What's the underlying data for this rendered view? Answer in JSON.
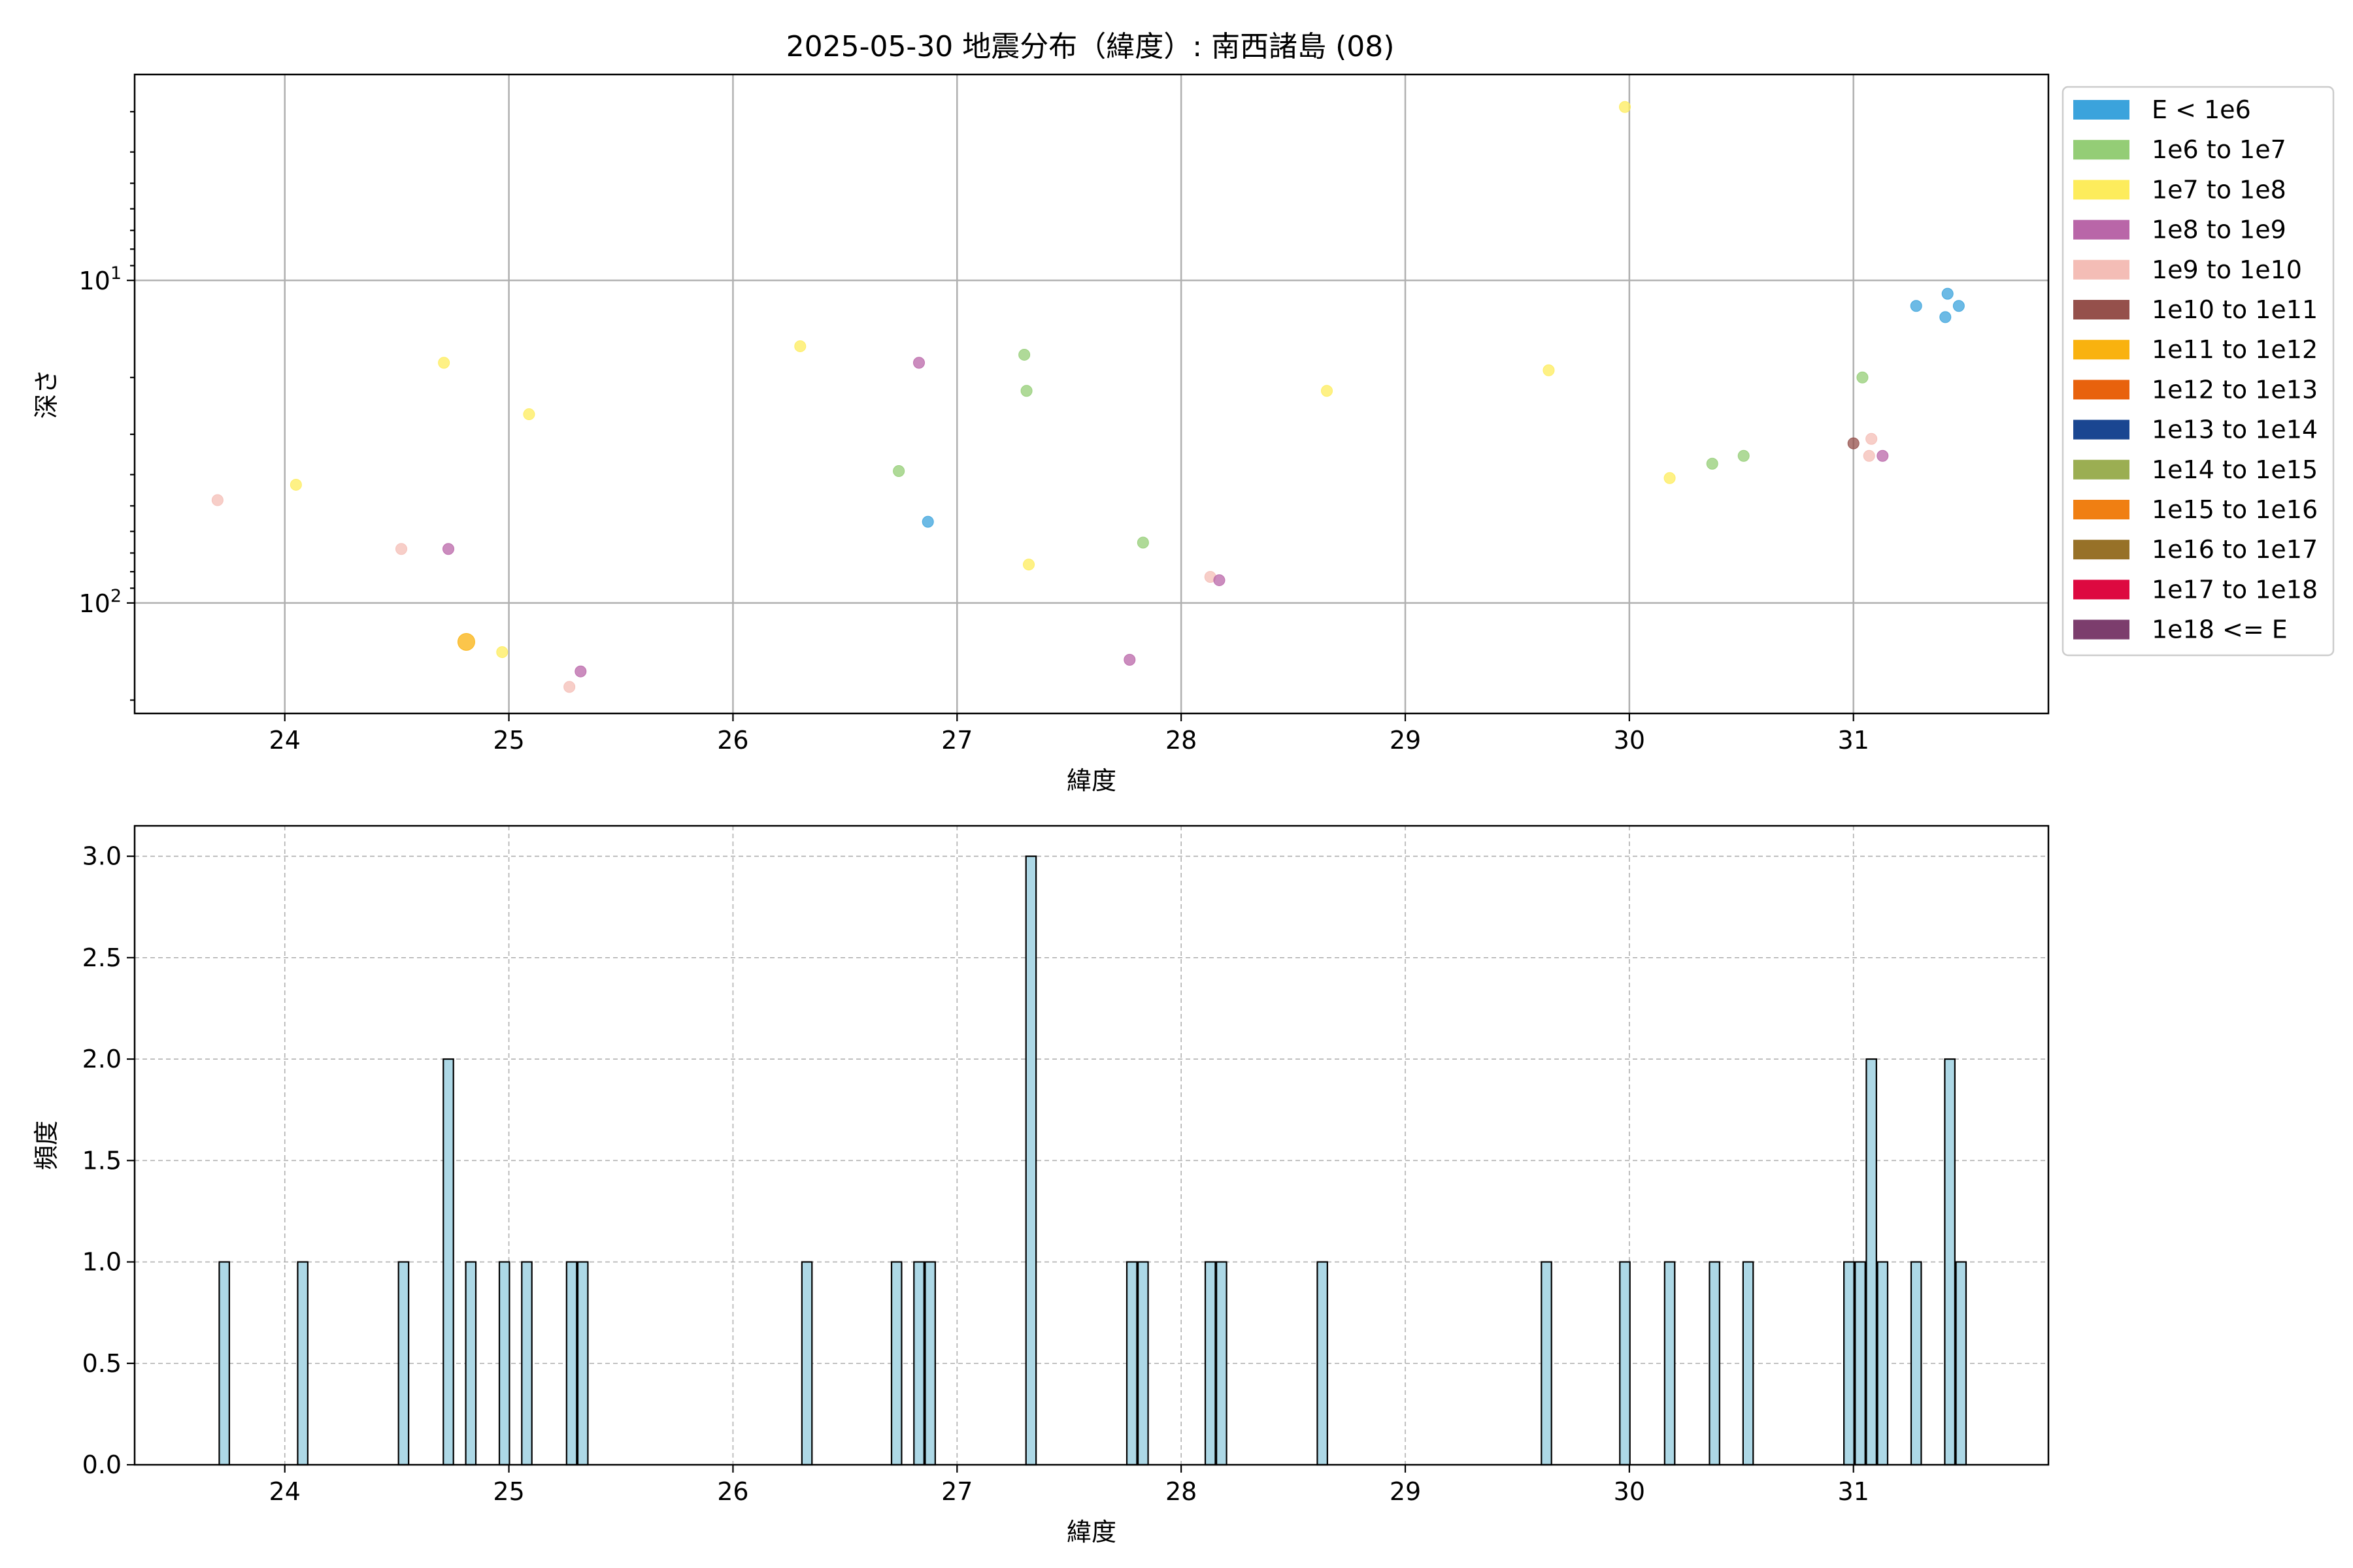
{
  "chart_data": [
    {
      "type": "scatter",
      "title": "2025-05-30 地震分布（緯度）: 南西諸島 (08)",
      "xlabel": "緯度",
      "ylabel": "深さ",
      "xlim": [
        23.33,
        31.87
      ],
      "ylim": [
        220,
        2.3
      ],
      "y_scale": "log",
      "y_inverted": true,
      "grid": true,
      "legend_placement": "outside-right",
      "x_ticks": [
        "24",
        "25",
        "26",
        "27",
        "28",
        "29",
        "30",
        "31"
      ],
      "y_tick_labels": [
        {
          "value": 10,
          "label": "10^1"
        },
        {
          "value": 100,
          "label": "10^2"
        }
      ],
      "legend": [
        {
          "label": "E < 1e6",
          "color": "#3ba3dc"
        },
        {
          "label": "1e6 to 1e7",
          "color": "#94cd76"
        },
        {
          "label": "1e7 to 1e8",
          "color": "#fdec5c"
        },
        {
          "label": "1e8 to 1e9",
          "color": "#b966a8"
        },
        {
          "label": "1e9 to 1e10",
          "color": "#f4bdb6"
        },
        {
          "label": "1e10 to 1e11",
          "color": "#95504b"
        },
        {
          "label": "1e11 to 1e12",
          "color": "#f9b20f"
        },
        {
          "label": "1e12 to 1e13",
          "color": "#e8620d"
        },
        {
          "label": "1e13 to 1e14",
          "color": "#1a4691"
        },
        {
          "label": "1e14 to 1e15",
          "color": "#9bae52"
        },
        {
          "label": "1e15 to 1e16",
          "color": "#f07f12"
        },
        {
          "label": "1e16 to 1e17",
          "color": "#977128"
        },
        {
          "label": "1e17 to 1e18",
          "color": "#dd0940"
        },
        {
          "label": "1e18 <= E",
          "color": "#7c3d6d"
        }
      ],
      "points": [
        {
          "x": 29.98,
          "y": 2.9,
          "class": 2
        },
        {
          "x": 31.28,
          "y": 12,
          "class": 0
        },
        {
          "x": 31.42,
          "y": 11,
          "class": 0
        },
        {
          "x": 31.47,
          "y": 12,
          "class": 0
        },
        {
          "x": 31.41,
          "y": 13,
          "class": 0
        },
        {
          "x": 26.3,
          "y": 16,
          "class": 2
        },
        {
          "x": 26.83,
          "y": 18,
          "class": 3
        },
        {
          "x": 27.3,
          "y": 17,
          "class": 1
        },
        {
          "x": 24.71,
          "y": 18,
          "class": 2
        },
        {
          "x": 29.64,
          "y": 19,
          "class": 2
        },
        {
          "x": 31.04,
          "y": 20,
          "class": 1
        },
        {
          "x": 27.31,
          "y": 22,
          "class": 1
        },
        {
          "x": 28.65,
          "y": 22,
          "class": 2
        },
        {
          "x": 25.09,
          "y": 26,
          "class": 2
        },
        {
          "x": 31.0,
          "y": 32,
          "class": 5
        },
        {
          "x": 31.08,
          "y": 31,
          "class": 4
        },
        {
          "x": 31.07,
          "y": 35,
          "class": 4
        },
        {
          "x": 31.13,
          "y": 35,
          "class": 3
        },
        {
          "x": 30.51,
          "y": 35,
          "class": 1
        },
        {
          "x": 30.37,
          "y": 37,
          "class": 1
        },
        {
          "x": 26.74,
          "y": 39,
          "class": 1
        },
        {
          "x": 30.18,
          "y": 41,
          "class": 2
        },
        {
          "x": 24.05,
          "y": 43,
          "class": 2
        },
        {
          "x": 23.7,
          "y": 48,
          "class": 4
        },
        {
          "x": 26.87,
          "y": 56,
          "class": 0
        },
        {
          "x": 27.83,
          "y": 65,
          "class": 1
        },
        {
          "x": 24.52,
          "y": 68,
          "class": 4
        },
        {
          "x": 24.73,
          "y": 68,
          "class": 3
        },
        {
          "x": 27.32,
          "y": 76,
          "class": 2
        },
        {
          "x": 28.13,
          "y": 83,
          "class": 4
        },
        {
          "x": 28.17,
          "y": 85,
          "class": 3
        },
        {
          "x": 24.81,
          "y": 132,
          "class": 6,
          "large": true
        },
        {
          "x": 24.97,
          "y": 142,
          "class": 2
        },
        {
          "x": 27.77,
          "y": 150,
          "class": 3
        },
        {
          "x": 25.32,
          "y": 163,
          "class": 3
        },
        {
          "x": 25.27,
          "y": 182,
          "class": 4
        }
      ]
    },
    {
      "type": "bar",
      "title": "",
      "xlabel": "緯度",
      "ylabel": "頻度",
      "xlim": [
        23.33,
        31.87
      ],
      "ylim": [
        0,
        3.15
      ],
      "grid": true,
      "bar_width": 0.045,
      "x_ticks": [
        "24",
        "25",
        "26",
        "27",
        "28",
        "29",
        "30",
        "31"
      ],
      "y_ticks": [
        "0.0",
        "0.5",
        "1.0",
        "1.5",
        "2.0",
        "2.5",
        "3.0"
      ],
      "bar_color": "#add8e6",
      "bars": [
        {
          "x": 23.73,
          "value": 1
        },
        {
          "x": 24.08,
          "value": 1
        },
        {
          "x": 24.53,
          "value": 1
        },
        {
          "x": 24.73,
          "value": 2
        },
        {
          "x": 24.83,
          "value": 1
        },
        {
          "x": 24.98,
          "value": 1
        },
        {
          "x": 25.08,
          "value": 1
        },
        {
          "x": 25.28,
          "value": 1
        },
        {
          "x": 25.33,
          "value": 1
        },
        {
          "x": 26.33,
          "value": 1
        },
        {
          "x": 26.73,
          "value": 1
        },
        {
          "x": 26.83,
          "value": 1
        },
        {
          "x": 26.88,
          "value": 1
        },
        {
          "x": 27.33,
          "value": 3
        },
        {
          "x": 27.78,
          "value": 1
        },
        {
          "x": 27.83,
          "value": 1
        },
        {
          "x": 28.13,
          "value": 1
        },
        {
          "x": 28.18,
          "value": 1
        },
        {
          "x": 28.63,
          "value": 1
        },
        {
          "x": 29.63,
          "value": 1
        },
        {
          "x": 29.98,
          "value": 1
        },
        {
          "x": 30.18,
          "value": 1
        },
        {
          "x": 30.38,
          "value": 1
        },
        {
          "x": 30.53,
          "value": 1
        },
        {
          "x": 30.98,
          "value": 1
        },
        {
          "x": 31.03,
          "value": 1
        },
        {
          "x": 31.08,
          "value": 2
        },
        {
          "x": 31.13,
          "value": 1
        },
        {
          "x": 31.28,
          "value": 1
        },
        {
          "x": 31.43,
          "value": 2
        },
        {
          "x": 31.48,
          "value": 1
        }
      ]
    }
  ]
}
